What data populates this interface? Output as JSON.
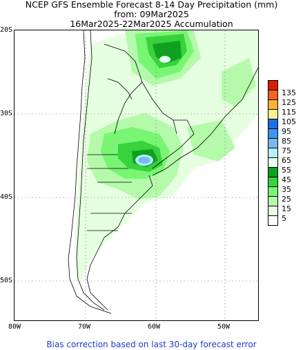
{
  "title": {
    "line1": "NCEP GFS Ensemble Forecast 8-14 Day Precipitation (mm)",
    "line2": "from: 09Mar2025",
    "line3": "16Mar2025-22Mar2025 Accumulation"
  },
  "map": {
    "lat_labels": [
      "20S",
      "30S",
      "40S",
      "50S"
    ],
    "lon_labels": [
      "80W",
      "70W",
      "60W",
      "50W"
    ],
    "ocean_color": "#ffffff",
    "land_color": "#ffffff",
    "border_color": "#000000",
    "grid_color": "#888888"
  },
  "legend": {
    "levels": [
      {
        "label": "135",
        "color": "#d81e05"
      },
      {
        "label": "125",
        "color": "#f0641e"
      },
      {
        "label": "115",
        "color": "#fab432"
      },
      {
        "label": "105",
        "color": "#fff08c"
      },
      {
        "label": "95",
        "color": "#1e6ee6"
      },
      {
        "label": "85",
        "color": "#3c96f0"
      },
      {
        "label": "75",
        "color": "#78b9f0"
      },
      {
        "label": "65",
        "color": "#b4f0fa"
      },
      {
        "label": "55",
        "color": "#e6fff0"
      },
      {
        "label": "45",
        "color": "#0ea01e"
      },
      {
        "label": "35",
        "color": "#37d23c"
      },
      {
        "label": "25",
        "color": "#78f573"
      },
      {
        "label": "15",
        "color": "#b4faaa"
      },
      {
        "label": "5",
        "color": "#e6ffe0"
      },
      {
        "label": "",
        "color": "#ffffff"
      }
    ]
  },
  "footer": "Bias correction based on last 30-day forecast error"
}
